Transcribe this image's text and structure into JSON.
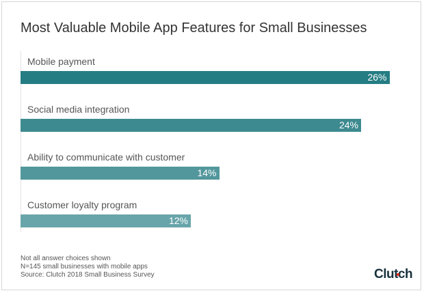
{
  "chart_data": {
    "type": "bar",
    "orientation": "horizontal",
    "title": "Most Valuable Mobile App Features for Small Businesses",
    "categories": [
      "Mobile payment",
      "Social media integration",
      "Ability to communicate with customer",
      "Customer loyalty program"
    ],
    "values": [
      26,
      24,
      14,
      12
    ],
    "value_labels": [
      "26%",
      "24%",
      "14%",
      "12%"
    ],
    "colors": [
      "#257d84",
      "#3d8a90",
      "#52979c",
      "#68a5aa"
    ],
    "xlim": [
      0,
      26
    ],
    "grid": false
  },
  "notes": [
    "Not all answer choices shown",
    "N=145 small businesses with mobile apps",
    "Source: Clutch 2018 Small Business Survey"
  ],
  "logo": "Clutch"
}
